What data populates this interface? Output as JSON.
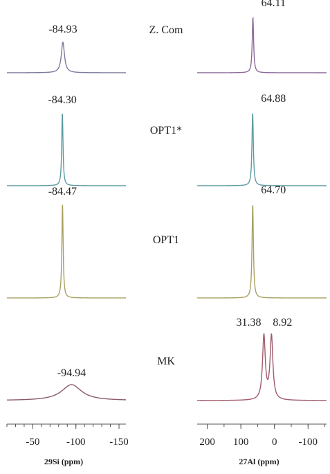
{
  "chart_data": [
    {
      "type": "line",
      "nucleus": "29Si",
      "xlabel": "29Si (ppm)",
      "xlim": [
        -20,
        -158
      ],
      "x_reversed": true,
      "x_ticks": [
        -50,
        -100,
        -150
      ],
      "tick_labels": [
        "-50",
        "-100",
        "-150"
      ],
      "series": [
        {
          "name": "Z. Com",
          "peak_ppm": -84.93,
          "peak_label": "-84.93",
          "width_ppm": 2.2,
          "amplitude": 0.55,
          "color": "#7a7a9a"
        },
        {
          "name": "OPT1*",
          "peak_ppm": -84.3,
          "peak_label": "-84.30",
          "width_ppm": 0.9,
          "amplitude": 1.0,
          "color": "#5b9aa0"
        },
        {
          "name": "OPT1",
          "peak_ppm": -84.47,
          "peak_label": "-84.47",
          "width_ppm": 0.9,
          "amplitude": 1.0,
          "color": "#a8a060"
        },
        {
          "name": "MK",
          "peak_ppm": -94.94,
          "peak_label": "-94.94",
          "width_ppm": 14.0,
          "amplitude": 0.25,
          "color": "#8a5a6a"
        }
      ]
    },
    {
      "type": "line",
      "nucleus": "27Al",
      "xlabel": "27Al (ppm)",
      "xlim": [
        230,
        -155
      ],
      "x_reversed": true,
      "x_ticks": [
        200,
        100,
        0,
        -100
      ],
      "tick_labels": [
        "200",
        "100",
        "0",
        "-100"
      ],
      "series": [
        {
          "name": "Z. Com",
          "peaks": [
            {
              "ppm": 64.11,
              "label": "64.11"
            }
          ],
          "width_ppm": 2.5,
          "amplitude": 1.0,
          "color": "#8a6a9a"
        },
        {
          "name": "OPT1*",
          "peaks": [
            {
              "ppm": 64.88,
              "label": "64.88"
            }
          ],
          "width_ppm": 2.5,
          "amplitude": 1.0,
          "color": "#5b9aa0"
        },
        {
          "name": "OPT1",
          "peaks": [
            {
              "ppm": 64.7,
              "label": "64.70"
            }
          ],
          "width_ppm": 2.5,
          "amplitude": 1.0,
          "color": "#a8a060"
        },
        {
          "name": "MK",
          "peaks": [
            {
              "ppm": 31.38,
              "label": "31.38"
            },
            {
              "ppm": 8.92,
              "label": "8.92"
            }
          ],
          "width_ppm": 5.0,
          "amplitude": 1.0,
          "color": "#a05a6a"
        }
      ]
    }
  ]
}
